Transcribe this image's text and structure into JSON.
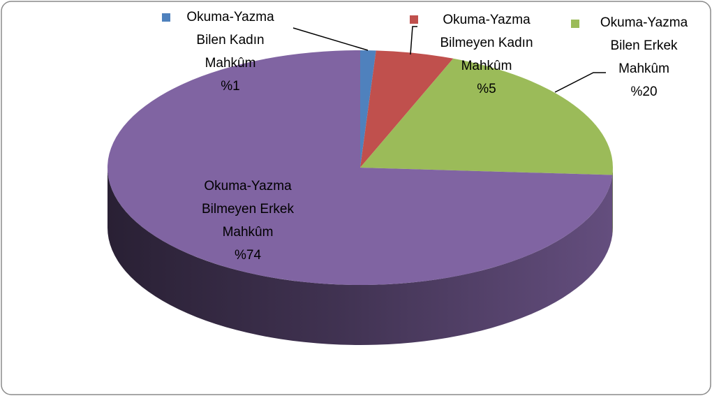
{
  "chart_data": {
    "type": "pie3d",
    "categories": [
      "Okuma-Yazma Bilen Kadın Mahkûm",
      "Okuma-Yazma Bilmeyen Kadın Mahkûm",
      "Okuma-Yazma Bilen Erkek Mahkûm",
      "Okuma-Yazma Bilmeyen Erkek Mahkûm"
    ],
    "values": [
      1,
      5,
      20,
      74
    ],
    "value_labels": [
      "%1",
      "%5",
      "%20",
      "%74"
    ],
    "colors": [
      "#4f81bd",
      "#c0504d",
      "#9bbb59",
      "#8064a2"
    ]
  }
}
